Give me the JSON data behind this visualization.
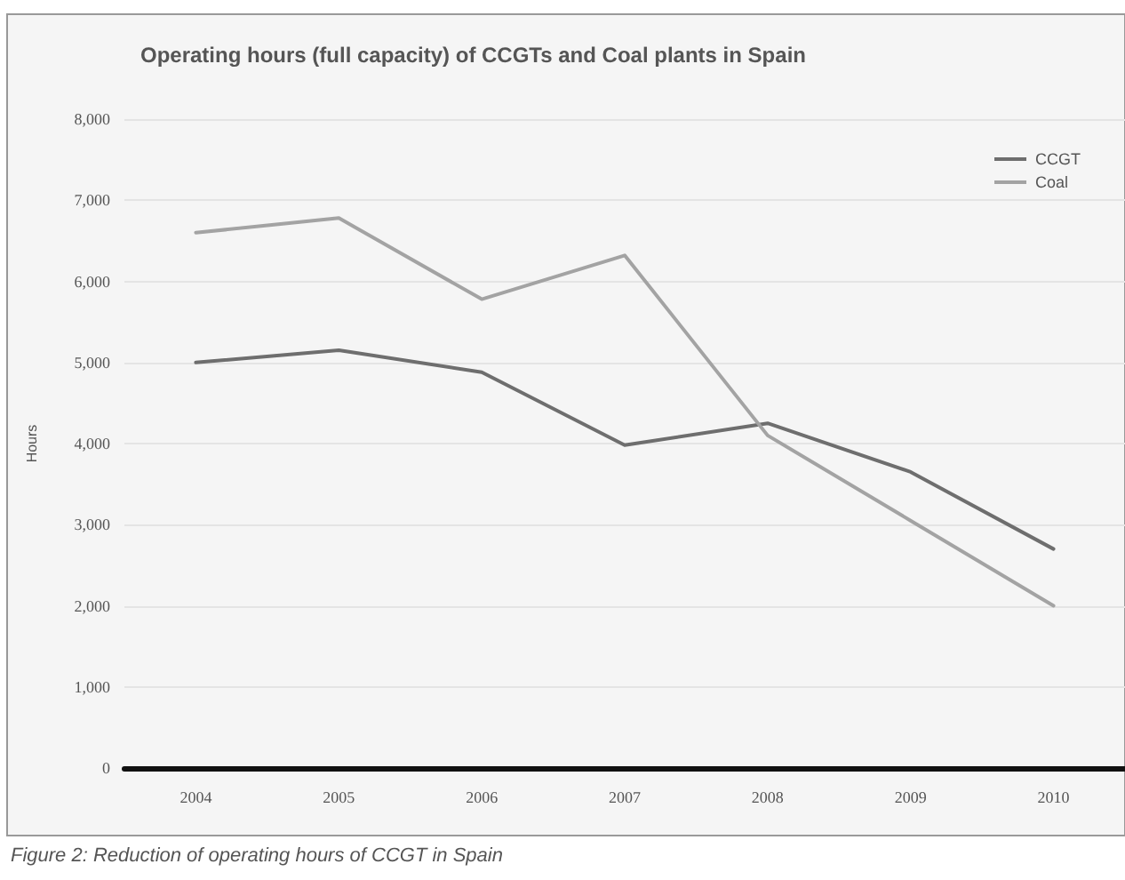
{
  "chart_data": {
    "type": "line",
    "title": "Operating hours (full capacity) of CCGTs and Coal plants in Spain",
    "ylabel": "Hours",
    "categories": [
      "2004",
      "2005",
      "2006",
      "2007",
      "2008",
      "2009",
      "2010"
    ],
    "series": [
      {
        "name": "CCGT",
        "color": "#6e6e6e",
        "values": [
          5000,
          5150,
          4880,
          3980,
          4250,
          3650,
          2700
        ]
      },
      {
        "name": "Coal",
        "color": "#a3a3a3",
        "values": [
          6600,
          6780,
          5780,
          6320,
          4100,
          3050,
          2000
        ]
      }
    ],
    "ylim": [
      0,
      8000
    ],
    "yticks": [
      0,
      {
        "value": 1000,
        "label": "1,000"
      },
      {
        "value": 2000,
        "label": "2,000"
      },
      {
        "value": 3000,
        "label": "3,000"
      },
      {
        "value": 4000,
        "label": "4,000"
      },
      {
        "value": 5000,
        "label": "5,000"
      },
      {
        "value": 6000,
        "label": "6,000"
      },
      {
        "value": 7000,
        "label": "7,000"
      },
      {
        "value": 8000,
        "label": "8,000"
      }
    ],
    "grid": "y",
    "legend": "top right",
    "marker": "none",
    "line_style": "solid",
    "annotations": [
      "Figure 2: Reduction of operating hours of CCGT in Spain"
    ]
  }
}
